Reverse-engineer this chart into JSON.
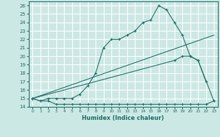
{
  "xlabel": "Humidex (Indice chaleur)",
  "bg_color": "#cce8e5",
  "grid_color": "#ffffff",
  "line_color": "#1a6e66",
  "xlim": [
    -0.5,
    23.5
  ],
  "ylim": [
    14,
    26.5
  ],
  "xticks": [
    0,
    1,
    2,
    3,
    4,
    5,
    6,
    7,
    8,
    9,
    10,
    11,
    12,
    13,
    14,
    15,
    16,
    17,
    18,
    19,
    20,
    21,
    22,
    23
  ],
  "yticks": [
    14,
    15,
    16,
    17,
    18,
    19,
    20,
    21,
    22,
    23,
    24,
    25,
    26
  ],
  "series": [
    {
      "x": [
        0,
        1,
        2,
        3,
        4,
        5,
        6,
        7,
        8,
        9,
        10,
        11,
        12,
        13,
        14,
        15,
        16,
        17,
        18,
        19,
        20,
        21,
        22,
        23
      ],
      "y": [
        15,
        14.7,
        14.7,
        14.3,
        14.3,
        14.3,
        14.3,
        14.3,
        14.3,
        14.3,
        14.3,
        14.3,
        14.3,
        14.3,
        14.3,
        14.3,
        14.3,
        14.3,
        14.3,
        14.3,
        14.3,
        14.3,
        14.3,
        14.7
      ]
    },
    {
      "x": [
        0,
        1,
        2,
        3,
        4,
        5,
        6,
        7,
        8,
        9,
        10,
        11,
        12,
        13,
        14,
        15,
        16,
        17,
        18,
        19,
        20,
        21,
        22
      ],
      "y": [
        15,
        14.7,
        15,
        15,
        15,
        15,
        15.5,
        16.5,
        18,
        21,
        22,
        22,
        22.5,
        23,
        24,
        24.3,
        26,
        25.5,
        24,
        22.5,
        20,
        19.5,
        17
      ]
    },
    {
      "x": [
        0,
        18,
        19,
        20,
        21,
        23
      ],
      "y": [
        15,
        19.5,
        20,
        20,
        19.5,
        14.7
      ]
    }
  ]
}
